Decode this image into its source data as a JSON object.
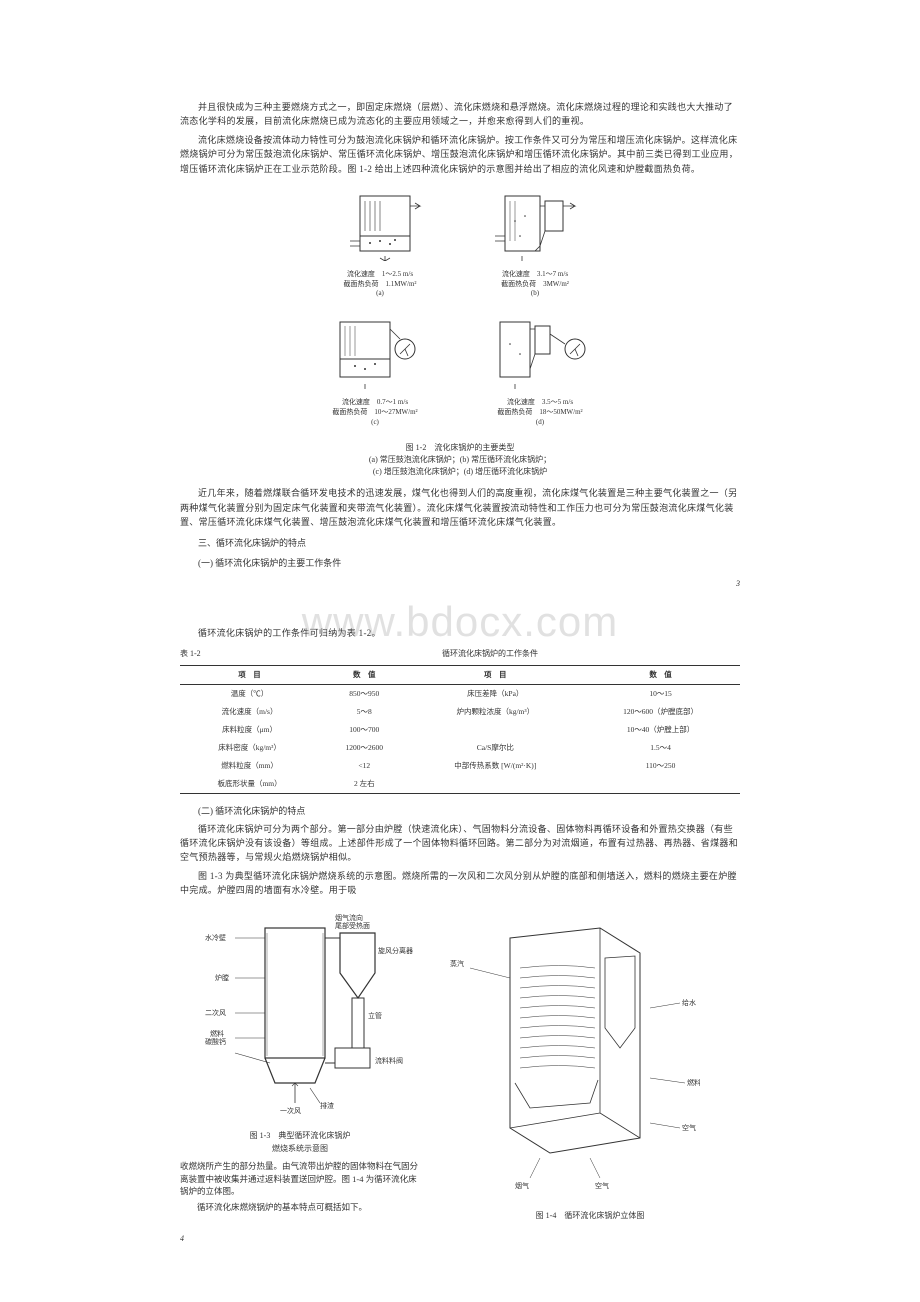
{
  "watermark": "www.bdocx.com",
  "intro_paragraphs": [
    "并且很快成为三种主要燃烧方式之一，即固定床燃烧（层燃）、流化床燃烧和悬浮燃烧。流化床燃烧过程的理论和实践也大大推动了流态化学科的发展，目前流化床燃烧已成为流态化的主要应用领域之一，并愈来愈得到人们的重视。",
    "流化床燃烧设备按流体动力特性可分为鼓泡流化床锅炉和循环流化床锅炉。按工作条件又可分为常压和增压流化床锅炉。这样流化床燃烧锅炉可分为常压鼓泡流化床锅炉、常压循环流化床锅炉、增压鼓泡流化床锅炉和增压循环流化床锅炉。其中前三类已得到工业应用，增压循环流化床锅炉正在工业示范阶段。图 1-2 给出上述四种流化床锅炉的示意图并给出了相应的流化风速和炉膛截面热负荷。"
  ],
  "diagram_a": {
    "line1": "流化速度　1～2.5 m/s",
    "line2": "截面热负荷　1.1MW/m²",
    "label": "(a)"
  },
  "diagram_b": {
    "line1": "流化速度　3.1～7 m/s",
    "line2": "截面热负荷　3MW/m²",
    "label": "(b)"
  },
  "diagram_c": {
    "line1": "流化速度　0.7～1 m/s",
    "line2": "截面热负荷　10～27MW/m²",
    "label": "(c)"
  },
  "diagram_d": {
    "line1": "流化速度　3.5～5 m/s",
    "line2": "截面热负荷　18～50MW/m²",
    "label": "(d)"
  },
  "figure_1_2": {
    "title": "图 1-2　流化床锅炉的主要类型",
    "line_ab": "(a) 常压鼓泡流化床锅炉；(b) 常压循环流化床锅炉；",
    "line_cd": "(c) 增压鼓泡流化床锅炉；(d) 增压循环流化床锅炉"
  },
  "mid_paragraph": "近几年来，随着燃煤联合循环发电技术的迅速发展，煤气化也得到人们的高度重视，流化床煤气化装置是三种主要气化装置之一（另两种煤气化装置分别为固定床气化装置和夹带流气化装置）。流化床煤气化装置按流动特性和工作压力也可分为常压鼓泡流化床煤气化装置、常压循环流化床煤气化装置、增压鼓泡流化床煤气化装置和增压循环流化床煤气化装置。",
  "section_3": "三、循环流化床锅炉的特点",
  "section_3_1": "(一) 循环流化床锅炉的主要工作条件",
  "page_num_3": "3",
  "table_intro": "循环流化床锅炉的工作条件可归纳为表 1-2。",
  "table_label": "表 1-2",
  "table_title": "循环流化床锅炉的工作条件",
  "table": {
    "headers": [
      "项　目",
      "数　值",
      "项　目",
      "数　值"
    ],
    "rows": [
      [
        "温度（℃）",
        "850～950",
        "床压差降（kPa）",
        "10～15"
      ],
      [
        "流化速度（m/s）",
        "5～8",
        "炉内颗粒浓度（kg/m³）",
        "120～600（炉膛底部）"
      ],
      [
        "床料粒度（μm）",
        "100～700",
        "",
        "10～40（炉膛上部）"
      ],
      [
        "床料密度（kg/m³）",
        "1200～2600",
        "Ca/S摩尔比",
        "1.5～4"
      ],
      [
        "燃料粒度（mm）",
        "<12",
        "中部传热系数 [W/(m²·K)]",
        "110～250"
      ],
      [
        "板底形状量（mm）",
        "2 左右",
        "",
        ""
      ]
    ]
  },
  "section_3_2": "(二) 循环流化床锅炉的特点",
  "para_3_2_1": "循环流化床锅炉可分为两个部分。第一部分由炉膛（快速流化床）、气固物料分流设备、固体物料再循环设备和外置热交换器（有些循环流化床锅炉没有该设备）等组成。上述部件形成了一个固体物料循环回路。第二部分为对流烟道，布置有过热器、再热器、省煤器和空气预热器等，与常规火焰燃烧锅炉相似。",
  "para_3_2_2": "图 1-3 为典型循环流化床锅炉燃烧系统的示意图。燃烧所需的一次风和二次风分别从炉膛的底部和侧墙送入，燃料的燃烧主要在炉膛中完成。炉膛四周的墙面有水冷壁。用于吸",
  "figure_1_3_title": "图 1-3　典型循环流化床锅炉",
  "figure_1_3_sub": "燃烧系统示意图",
  "para_lower_1": "收燃烧所产生的部分热量。由气流带出炉膛的固体物料在气固分离装置中被收集并通过返料装置送回炉腔。图 1-4 为循环流化床锅炉的立体图。",
  "para_lower_2": "循环流化床燃烧锅炉的基本特点可概括如下。",
  "figure_1_4_caption": "图 1-4　循环流化床锅炉立体图",
  "page_num_4": "4",
  "labels_1_3": {
    "l1": "烟气流向\n尾部受热面",
    "l2": "水冷壁",
    "l3": "旋风分离器",
    "l4": "炉膛",
    "l5": "立管",
    "l6": "二次风",
    "l7": "燃料\n碳酸钙",
    "l8": "流料料阀",
    "l9": "一次风",
    "l10": "排渣"
  },
  "labels_1_4": {
    "l1": "蒸汽",
    "l2": "给水",
    "l3": "燃料",
    "l4": "空气",
    "l5": "烟气",
    "l6": "空气"
  }
}
